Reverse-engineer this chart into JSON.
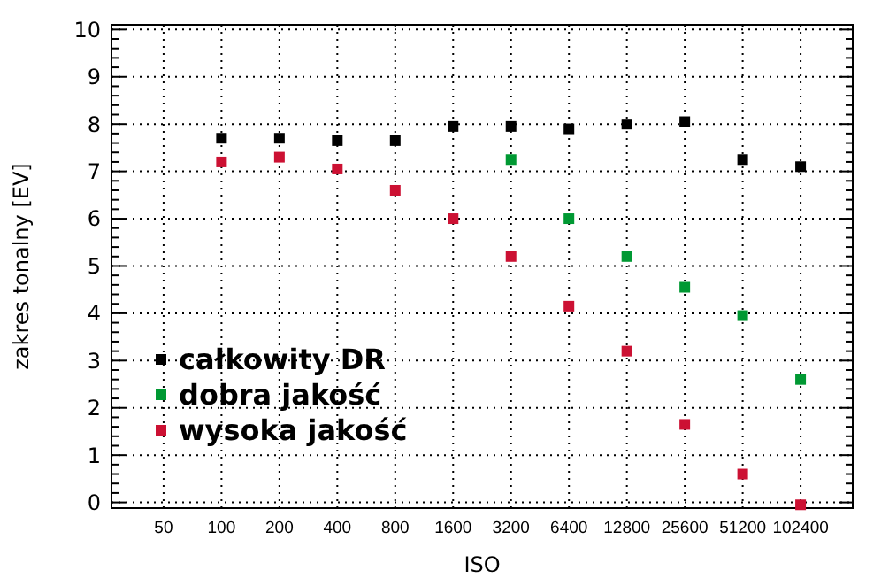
{
  "chart_data": {
    "type": "scatter",
    "xlabel": "ISO",
    "ylabel": "zakres tonalny [EV]",
    "categories": [
      "50",
      "100",
      "200",
      "400",
      "800",
      "1600",
      "3200",
      "6400",
      "12800",
      "25600",
      "51200",
      "102400"
    ],
    "series": [
      {
        "name": "całkowity DR",
        "color": "#000000",
        "values": [
          null,
          7.7,
          7.7,
          7.65,
          7.65,
          7.95,
          7.95,
          7.9,
          8.0,
          8.05,
          7.25,
          7.1
        ]
      },
      {
        "name": "dobra jakość",
        "color": "#009933",
        "values": [
          null,
          null,
          null,
          null,
          null,
          null,
          7.25,
          6.0,
          5.2,
          4.55,
          3.95,
          2.6
        ]
      },
      {
        "name": "wysoka jakość",
        "color": "#cc1133",
        "values": [
          null,
          7.2,
          7.3,
          7.05,
          6.6,
          6.0,
          5.2,
          4.15,
          3.2,
          1.65,
          0.6,
          -0.05
        ]
      }
    ],
    "ylim": [
      -0.12,
      10.1
    ],
    "yticks": [
      0,
      1,
      2,
      3,
      4,
      5,
      6,
      7,
      8,
      9,
      10
    ],
    "grid": true,
    "marker": "square",
    "legend": "bottom left"
  }
}
